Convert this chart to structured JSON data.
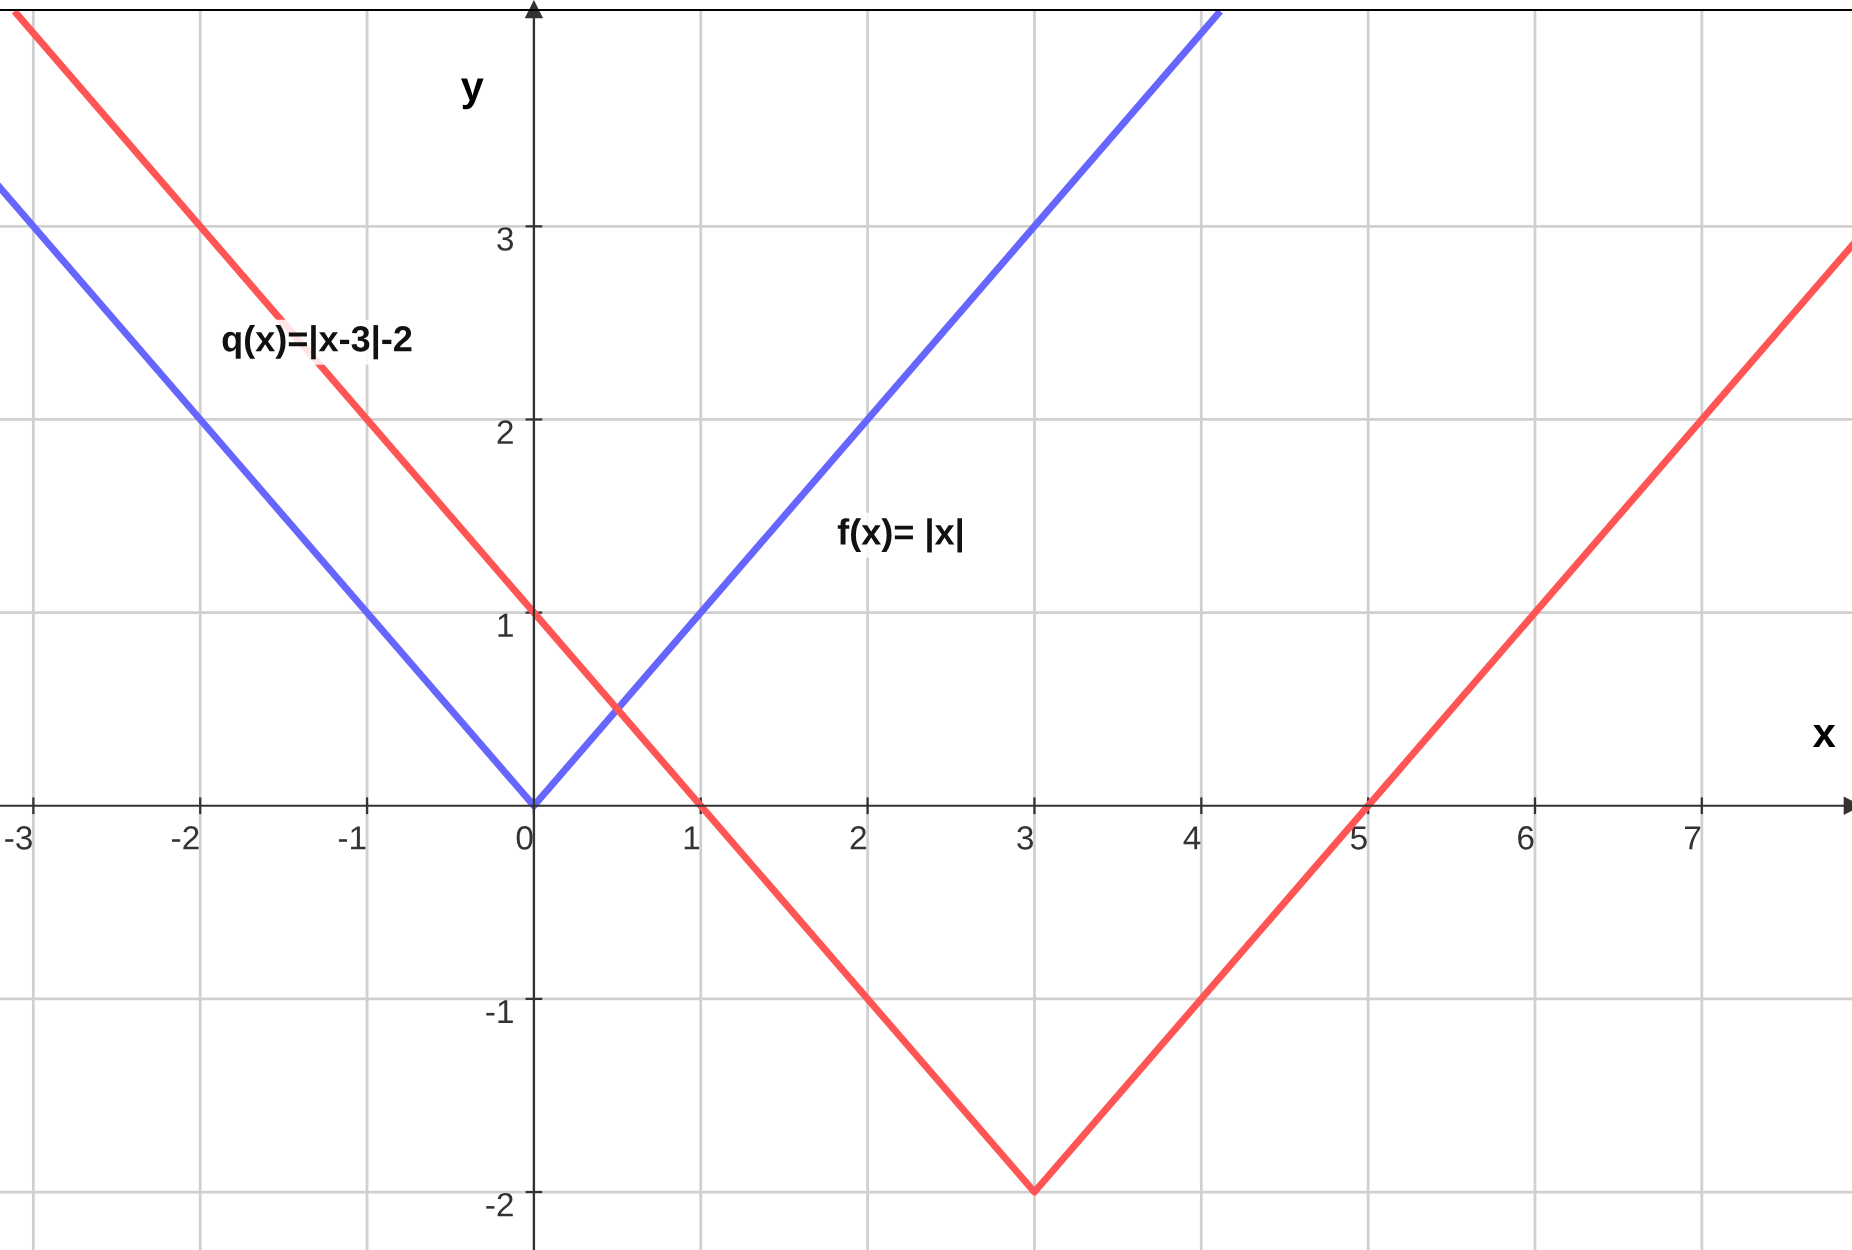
{
  "chart_data": {
    "type": "line",
    "xlabel": "x",
    "ylabel": "y",
    "xlim": [
      -3.2,
      7.9
    ],
    "ylim": [
      -2.3,
      4.12
    ],
    "xticks": [
      -3,
      -2,
      -1,
      0,
      1,
      2,
      3,
      4,
      5,
      6,
      7
    ],
    "yticks": [
      -2,
      -1,
      1,
      2,
      3
    ],
    "grid": true,
    "marker": "none",
    "line_style": "solid",
    "legend": false,
    "series": [
      {
        "name": "f(x)= |x|",
        "color": "#6666ff",
        "x": [
          -3.2,
          0,
          4.1
        ],
        "values": [
          3.2,
          0,
          4.1
        ]
      },
      {
        "name": "q(x)=|x-3|-2",
        "color": "#ff5555",
        "x": [
          -3.1,
          3,
          7.9
        ],
        "values": [
          4.1,
          -2,
          2.9
        ]
      }
    ]
  }
}
